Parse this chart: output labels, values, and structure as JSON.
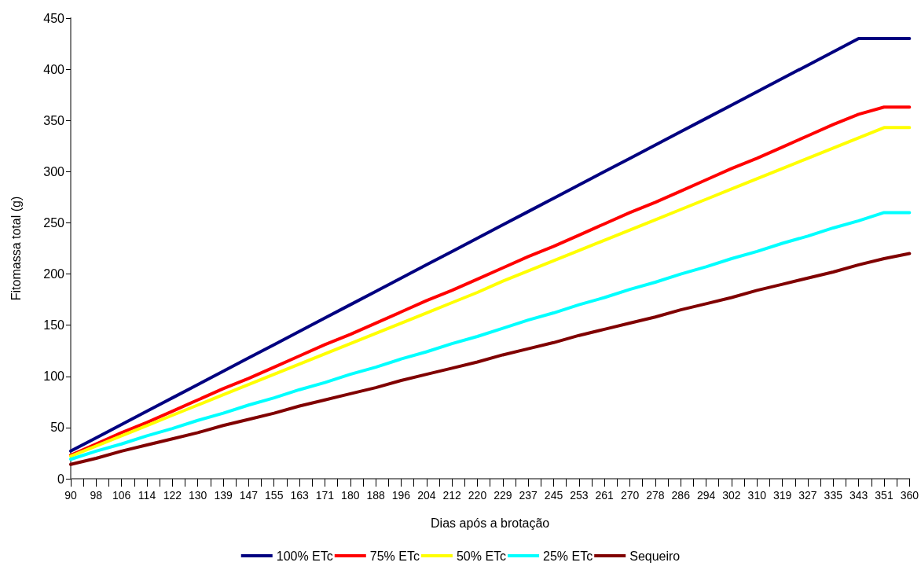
{
  "chart_data": {
    "type": "line",
    "xlabel": "Dias após a brotação",
    "ylabel": "Fitomassa total (g)",
    "categories": [
      "90",
      null,
      "98",
      null,
      "106",
      null,
      "114",
      null,
      "122",
      null,
      "130",
      null,
      "139",
      null,
      "147",
      null,
      "155",
      null,
      "163",
      null,
      "171",
      null,
      "180",
      null,
      "188",
      null,
      "196",
      null,
      "204",
      null,
      "212",
      null,
      "220",
      null,
      "229",
      null,
      "237",
      null,
      "245",
      null,
      "253",
      null,
      "261",
      null,
      "270",
      null,
      "278",
      null,
      "286",
      null,
      "294",
      null,
      "302",
      null,
      "310",
      null,
      "319",
      null,
      "327",
      null,
      "335",
      null,
      "343",
      null,
      "351",
      null,
      "360"
    ],
    "ylim": [
      0,
      450
    ],
    "yticks": [
      0,
      50,
      100,
      150,
      200,
      250,
      300,
      350,
      400,
      450
    ],
    "grid": false,
    "legend": "bottom",
    "marker": "none",
    "line_style": "solid",
    "series": [
      {
        "name": "100% ETc",
        "color": "#000080",
        "values": [
          27,
          null,
          40,
          null,
          53,
          null,
          66,
          null,
          79,
          null,
          92,
          null,
          105,
          null,
          118,
          null,
          131,
          null,
          144,
          null,
          157,
          null,
          170,
          null,
          183,
          null,
          196,
          null,
          209,
          null,
          222,
          null,
          235,
          null,
          248,
          null,
          261,
          null,
          274,
          null,
          287,
          null,
          300,
          null,
          313,
          null,
          326,
          null,
          339,
          null,
          352,
          null,
          365,
          null,
          378,
          null,
          391,
          null,
          404,
          null,
          417,
          null,
          430,
          null,
          430,
          null,
          430
        ]
      },
      {
        "name": "75% ETc",
        "color": "#ff0000",
        "values": [
          23,
          null,
          34,
          null,
          45,
          null,
          55,
          null,
          66,
          null,
          77,
          null,
          88,
          null,
          98,
          null,
          109,
          null,
          120,
          null,
          131,
          null,
          141,
          null,
          152,
          null,
          163,
          null,
          174,
          null,
          184,
          null,
          195,
          null,
          206,
          null,
          217,
          null,
          227,
          null,
          238,
          null,
          249,
          null,
          260,
          null,
          270,
          null,
          281,
          null,
          292,
          null,
          303,
          null,
          313,
          null,
          324,
          null,
          335,
          null,
          346,
          null,
          356,
          null,
          363,
          null,
          363
        ]
      },
      {
        "name": "50% ETc",
        "color": "#ffff00",
        "values": [
          22,
          null,
          32,
          null,
          42,
          null,
          52,
          null,
          62,
          null,
          72,
          null,
          82,
          null,
          92,
          null,
          102,
          null,
          112,
          null,
          122,
          null,
          132,
          null,
          142,
          null,
          152,
          null,
          162,
          null,
          172,
          null,
          182,
          null,
          193,
          null,
          203,
          null,
          213,
          null,
          223,
          null,
          233,
          null,
          243,
          null,
          253,
          null,
          263,
          null,
          273,
          null,
          283,
          null,
          293,
          null,
          303,
          null,
          313,
          null,
          323,
          null,
          333,
          null,
          343,
          null,
          343
        ]
      },
      {
        "name": "25% ETc",
        "color": "#00ffff",
        "values": [
          19,
          null,
          27,
          null,
          34,
          null,
          42,
          null,
          49,
          null,
          57,
          null,
          64,
          null,
          72,
          null,
          79,
          null,
          87,
          null,
          94,
          null,
          102,
          null,
          109,
          null,
          117,
          null,
          124,
          null,
          132,
          null,
          139,
          null,
          147,
          null,
          155,
          null,
          162,
          null,
          170,
          null,
          177,
          null,
          185,
          null,
          192,
          null,
          200,
          null,
          207,
          null,
          215,
          null,
          222,
          null,
          230,
          null,
          237,
          null,
          245,
          null,
          252,
          null,
          260,
          null,
          260
        ]
      },
      {
        "name": "Sequeiro",
        "color": "#800000",
        "values": [
          14,
          null,
          20,
          null,
          27,
          null,
          33,
          null,
          39,
          null,
          45,
          null,
          52,
          null,
          58,
          null,
          64,
          null,
          71,
          null,
          77,
          null,
          83,
          null,
          89,
          null,
          96,
          null,
          102,
          null,
          108,
          null,
          114,
          null,
          121,
          null,
          127,
          null,
          133,
          null,
          140,
          null,
          146,
          null,
          152,
          null,
          158,
          null,
          165,
          null,
          171,
          null,
          177,
          null,
          184,
          null,
          190,
          null,
          196,
          null,
          202,
          null,
          209,
          null,
          215,
          null,
          220
        ]
      }
    ]
  }
}
